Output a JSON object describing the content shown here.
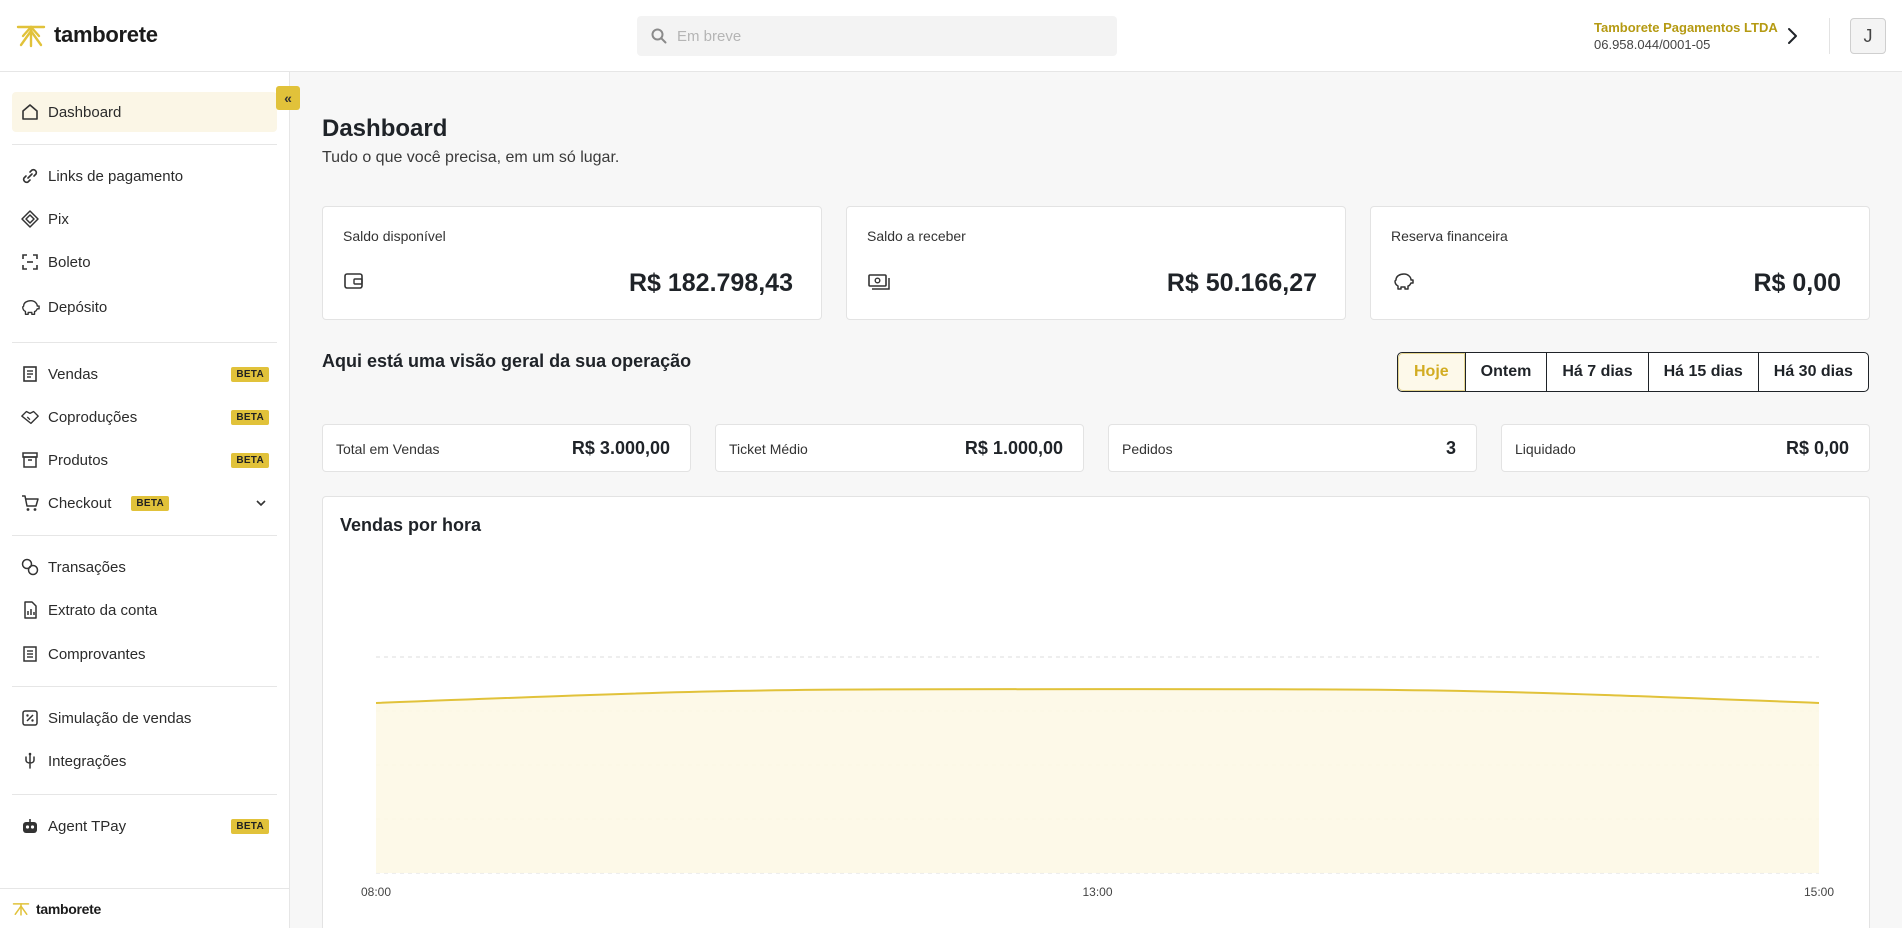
{
  "header": {
    "logo_text": "tamborete",
    "search_placeholder": "Em breve",
    "company_name": "Tamborete Pagamentos LTDA",
    "company_id": "06.958.044/0001-05",
    "avatar_initial": "J"
  },
  "sidebar": {
    "collapse_label": "«",
    "items": [
      {
        "label": "Dashboard",
        "icon": "home-icon"
      },
      {
        "label": "Links de pagamento",
        "icon": "link-icon"
      },
      {
        "label": "Pix",
        "icon": "pix-icon"
      },
      {
        "label": "Boleto",
        "icon": "barcode-scan-icon"
      },
      {
        "label": "Depósito",
        "icon": "piggy-bank-icon"
      },
      {
        "label": "Vendas",
        "icon": "receipt-icon",
        "badge": "BETA"
      },
      {
        "label": "Coproduções",
        "icon": "handshake-icon",
        "badge": "BETA"
      },
      {
        "label": "Produtos",
        "icon": "archive-box-icon",
        "badge": "BETA"
      },
      {
        "label": "Checkout",
        "icon": "cart-icon",
        "badge": "BETA"
      },
      {
        "label": "Transações",
        "icon": "transactions-icon"
      },
      {
        "label": "Extrato da conta",
        "icon": "statement-icon"
      },
      {
        "label": "Comprovantes",
        "icon": "receipt-list-icon"
      },
      {
        "label": "Simulação de vendas",
        "icon": "percent-icon"
      },
      {
        "label": "Integrações",
        "icon": "plug-icon"
      },
      {
        "label": "Agent TPay",
        "icon": "robot-icon",
        "badge": "BETA"
      }
    ],
    "footer_logo": "tamborete"
  },
  "main": {
    "title": "Dashboard",
    "subtitle": "Tudo o que você precisa, em um só lugar.",
    "balance_cards": [
      {
        "label": "Saldo disponível",
        "value": "R$ 182.798,43",
        "icon": "wallet-icon"
      },
      {
        "label": "Saldo a receber",
        "value": "R$ 50.166,27",
        "icon": "cash-icon"
      },
      {
        "label": "Reserva financeira",
        "value": "R$ 0,00",
        "icon": "piggy-bank-icon"
      }
    ],
    "overview_title": "Aqui está uma visão geral da sua operação",
    "filters": [
      "Hoje",
      "Ontem",
      "Há 7 dias",
      "Há 15 dias",
      "Há 30 dias"
    ],
    "selected_filter": "Hoje",
    "stats": [
      {
        "label": "Total em Vendas",
        "value": "R$ 3.000,00"
      },
      {
        "label": "Ticket Médio",
        "value": "R$ 1.000,00"
      },
      {
        "label": "Pedidos",
        "value": "3"
      },
      {
        "label": "Liquidado",
        "value": "R$ 0,00"
      }
    ]
  },
  "chart_data": {
    "type": "area",
    "title": "Vendas por hora",
    "x": [
      "08:00",
      "13:00",
      "15:00"
    ],
    "series": [
      {
        "values": [
          0.7,
          1.0,
          0.7
        ]
      }
    ],
    "ylim": [
      -3,
      1.7
    ],
    "grid": true,
    "line_color": "#e1c23a"
  },
  "colors": {
    "accent": "#e1c23a",
    "accent_text": "#b59a12"
  }
}
